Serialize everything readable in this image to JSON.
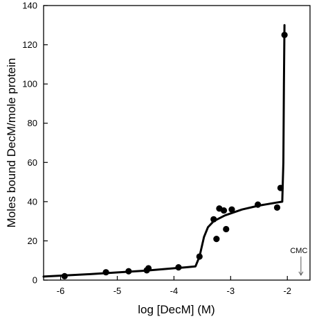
{
  "chart_data": {
    "type": "scatter",
    "title": "",
    "xlabel": "log [DecM] (M)",
    "ylabel": "Moles bound DecM/mole protein",
    "xlim": [
      -6.3,
      -1.6
    ],
    "ylim": [
      0,
      140
    ],
    "x_ticks": [
      -6,
      -5,
      -4,
      -3,
      -2
    ],
    "y_ticks": [
      0,
      20,
      40,
      60,
      80,
      100,
      120,
      140
    ],
    "grid": false,
    "legend": "none",
    "series": [
      {
        "kind": "points",
        "color": "#000000",
        "points": [
          {
            "x": -5.93,
            "y": 2.0
          },
          {
            "x": -5.2,
            "y": 4.0
          },
          {
            "x": -4.8,
            "y": 4.5
          },
          {
            "x": -4.48,
            "y": 5.0
          },
          {
            "x": -4.45,
            "y": 6.0
          },
          {
            "x": -3.92,
            "y": 6.5
          },
          {
            "x": -3.55,
            "y": 12.0
          },
          {
            "x": -3.3,
            "y": 31.0
          },
          {
            "x": -3.25,
            "y": 21.0
          },
          {
            "x": -3.2,
            "y": 36.5
          },
          {
            "x": -3.12,
            "y": 35.5
          },
          {
            "x": -3.08,
            "y": 26.0
          },
          {
            "x": -2.98,
            "y": 36.0
          },
          {
            "x": -2.52,
            "y": 38.5
          },
          {
            "x": -2.18,
            "y": 37.0
          },
          {
            "x": -2.12,
            "y": 47.0
          },
          {
            "x": -2.05,
            "y": 125.0
          }
        ]
      },
      {
        "kind": "line",
        "color": "#000000",
        "points": [
          {
            "x": -6.3,
            "y": 1.8
          },
          {
            "x": -5.5,
            "y": 3.0
          },
          {
            "x": -4.5,
            "y": 4.8
          },
          {
            "x": -3.8,
            "y": 6.5
          },
          {
            "x": -3.62,
            "y": 7.0
          },
          {
            "x": -3.55,
            "y": 12.0
          },
          {
            "x": -3.47,
            "y": 22.0
          },
          {
            "x": -3.4,
            "y": 27.0
          },
          {
            "x": -3.3,
            "y": 30.0
          },
          {
            "x": -3.1,
            "y": 33.0
          },
          {
            "x": -2.8,
            "y": 36.0
          },
          {
            "x": -2.5,
            "y": 38.0
          },
          {
            "x": -2.2,
            "y": 39.5
          },
          {
            "x": -2.09,
            "y": 40.0
          },
          {
            "x": -2.07,
            "y": 60.0
          },
          {
            "x": -2.06,
            "y": 100.0
          },
          {
            "x": -2.05,
            "y": 130.0
          }
        ]
      }
    ],
    "annotations": [
      {
        "text": "CMC",
        "x": -1.76,
        "arrow_y_from": 12.0,
        "arrow_y_to": 2.5
      }
    ]
  }
}
